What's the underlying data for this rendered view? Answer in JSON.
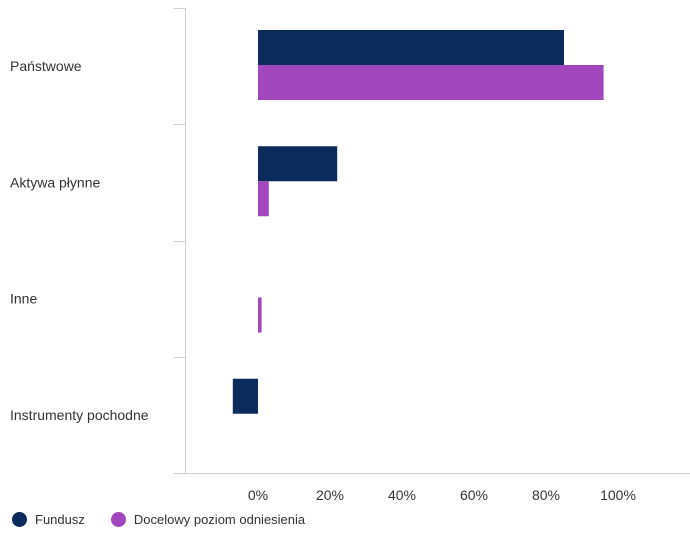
{
  "chart_data": {
    "type": "bar",
    "orientation": "horizontal",
    "categories": [
      "Państwowe",
      "Aktywa płynne",
      "Inne",
      "Instrumenty pochodne"
    ],
    "series": [
      {
        "name": "Fundusz",
        "values": [
          85,
          22,
          0,
          -7
        ],
        "color": "#0b2b5c"
      },
      {
        "name": "Docelowy poziom odniesienia",
        "values": [
          96,
          3,
          1,
          0
        ],
        "color": "#a246be"
      }
    ],
    "xlim": [
      -20,
      120
    ],
    "xticks": [
      0,
      20,
      40,
      60,
      80,
      100
    ],
    "xtick_labels": [
      "0%",
      "20%",
      "40%",
      "60%",
      "80%",
      "100%"
    ],
    "grid": false,
    "legend_position": "bottom-left"
  }
}
